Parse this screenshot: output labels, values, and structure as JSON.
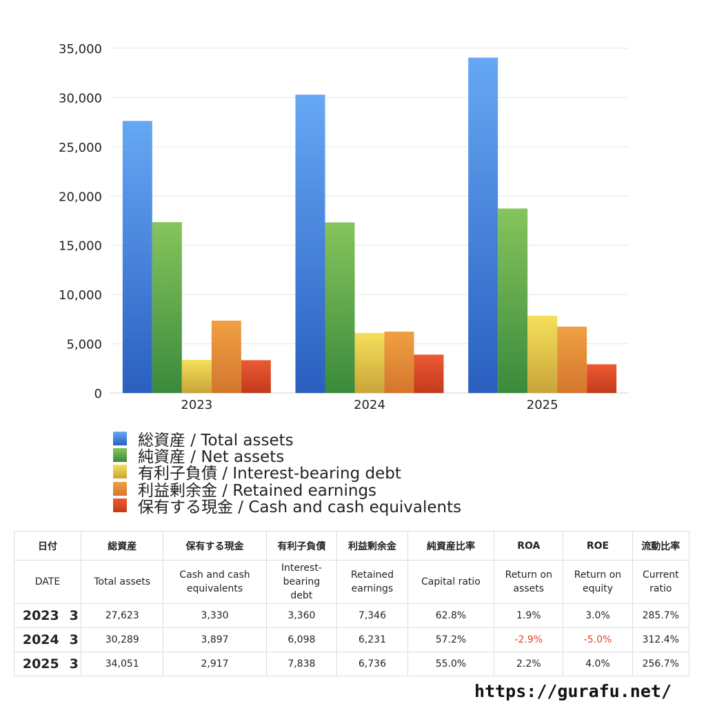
{
  "chart_data": {
    "type": "bar",
    "categories": [
      "2023",
      "2024",
      "2025"
    ],
    "ylim": [
      0,
      35000
    ],
    "yticks": [
      "0",
      "5,000",
      "10,000",
      "15,000",
      "20,000",
      "25,000",
      "30,000",
      "35,000"
    ],
    "grid": true,
    "legend_position": "bottom",
    "series": [
      {
        "name": "総資産 / Total assets",
        "values": [
          27623,
          30289,
          34051
        ],
        "color_top": "#66a8f4",
        "color_bottom": "#2a5fc0"
      },
      {
        "name": "純資産 / Net assets",
        "values": [
          17347,
          17315,
          18728
        ],
        "color_top": "#86c45c",
        "color_bottom": "#3a8a3c"
      },
      {
        "name": "有利子負債 / Interest-bearing debt",
        "values": [
          3360,
          6098,
          7838
        ],
        "color_top": "#f5e05a",
        "color_bottom": "#c9a43a"
      },
      {
        "name": "利益剰余金 / Retained earnings",
        "values": [
          7346,
          6231,
          6736
        ],
        "color_top": "#f0a043",
        "color_bottom": "#d4762d"
      },
      {
        "name": "保有する現金 /  Cash and cash equivalents",
        "values": [
          3330,
          3897,
          2917
        ],
        "color_top": "#ec5a32",
        "color_bottom": "#c23a1c"
      }
    ]
  },
  "table": {
    "headers_jp": [
      "日付",
      "総資産",
      "保有する現金",
      "有利子負債",
      "利益剰余金",
      "純資産比率",
      "ROA",
      "ROE",
      "流動比率"
    ],
    "headers_en": [
      "DATE",
      "Total assets",
      "Cash and cash\nequivalents",
      "Interest-\nbearing\ndebt",
      "Retained\nearnings",
      "Capital ratio",
      "Return on\nassets",
      "Return on\nequity",
      "Current\nratio"
    ],
    "rows": [
      {
        "year": "2023",
        "q": "3",
        "total_assets": "27,623",
        "cash": "3,330",
        "debt": "3,360",
        "retained": "7,346",
        "capital_ratio": "62.8%",
        "roa": "1.9%",
        "roe": "3.0%",
        "current_ratio": "285.7%"
      },
      {
        "year": "2024",
        "q": "3",
        "total_assets": "30,289",
        "cash": "3,897",
        "debt": "6,098",
        "retained": "6,231",
        "capital_ratio": "57.2%",
        "roa": "-2.9%",
        "roe": "-5.0%",
        "current_ratio": "312.4%"
      },
      {
        "year": "2025",
        "q": "3",
        "total_assets": "34,051",
        "cash": "2,917",
        "debt": "7,838",
        "retained": "6,736",
        "capital_ratio": "55.0%",
        "roa": "2.2%",
        "roe": "4.0%",
        "current_ratio": "256.7%"
      }
    ],
    "negative_color": "#e0462b"
  },
  "footer": {
    "url": "https://gurafu.net/"
  }
}
